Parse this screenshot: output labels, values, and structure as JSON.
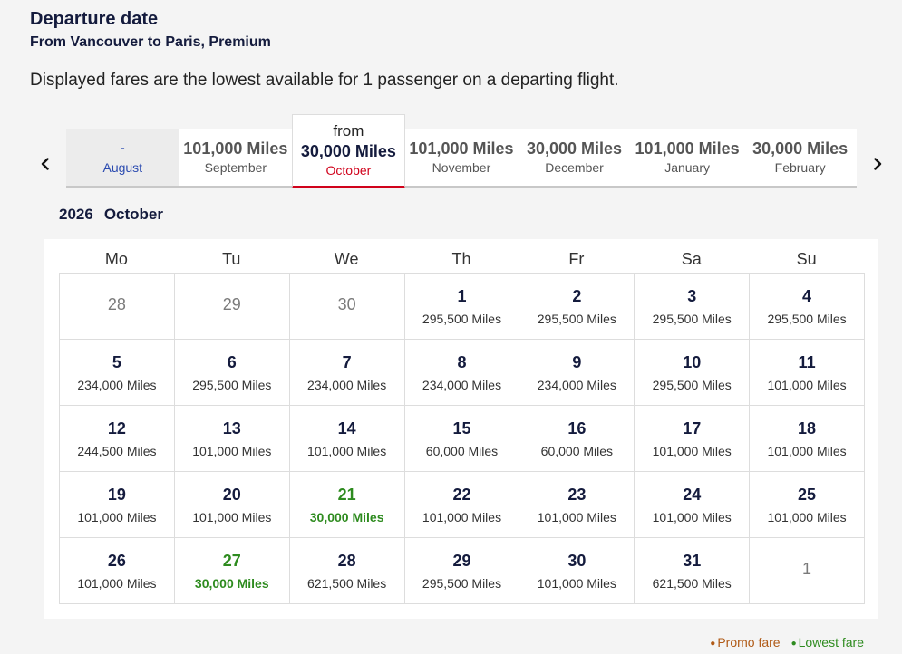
{
  "header": {
    "title": "Departure date",
    "subtitle": "From Vancouver to Paris, Premium",
    "note": "Displayed fares are the lowest available for 1 passenger on a departing flight."
  },
  "month_selector": {
    "prev_icon": "chevron-left-icon",
    "next_icon": "chevron-right-icon",
    "months": [
      {
        "price": "-",
        "name": "August",
        "state": "past"
      },
      {
        "price": "101,000 Miles",
        "name": "September"
      },
      {
        "from": "from",
        "price": "30,000 Miles",
        "name": "October",
        "state": "selected"
      },
      {
        "price": "101,000 Miles",
        "name": "November"
      },
      {
        "price": "30,000 Miles",
        "name": "December"
      },
      {
        "price": "101,000 Miles",
        "name": "January"
      },
      {
        "price": "30,000 Miles",
        "name": "February"
      }
    ]
  },
  "calendar": {
    "year": "2026",
    "month": "October",
    "weekdays": [
      "Mo",
      "Tu",
      "We",
      "Th",
      "Fr",
      "Sa",
      "Su"
    ],
    "cells": [
      {
        "day": "28",
        "out": true
      },
      {
        "day": "29",
        "out": true
      },
      {
        "day": "30",
        "out": true
      },
      {
        "day": "1",
        "miles": "295,500 Miles"
      },
      {
        "day": "2",
        "miles": "295,500 Miles"
      },
      {
        "day": "3",
        "miles": "295,500 Miles"
      },
      {
        "day": "4",
        "miles": "295,500 Miles"
      },
      {
        "day": "5",
        "miles": "234,000 Miles"
      },
      {
        "day": "6",
        "miles": "295,500 Miles"
      },
      {
        "day": "7",
        "miles": "234,000 Miles"
      },
      {
        "day": "8",
        "miles": "234,000 Miles"
      },
      {
        "day": "9",
        "miles": "234,000 Miles"
      },
      {
        "day": "10",
        "miles": "295,500 Miles"
      },
      {
        "day": "11",
        "miles": "101,000 Miles"
      },
      {
        "day": "12",
        "miles": "244,500 Miles"
      },
      {
        "day": "13",
        "miles": "101,000 Miles"
      },
      {
        "day": "14",
        "miles": "101,000 Miles"
      },
      {
        "day": "15",
        "miles": "60,000 Miles"
      },
      {
        "day": "16",
        "miles": "60,000 Miles"
      },
      {
        "day": "17",
        "miles": "101,000 Miles"
      },
      {
        "day": "18",
        "miles": "101,000 Miles"
      },
      {
        "day": "19",
        "miles": "101,000 Miles"
      },
      {
        "day": "20",
        "miles": "101,000 Miles"
      },
      {
        "day": "21",
        "miles": "30,000 Miles",
        "lowest": true
      },
      {
        "day": "22",
        "miles": "101,000 Miles"
      },
      {
        "day": "23",
        "miles": "101,000 Miles"
      },
      {
        "day": "24",
        "miles": "101,000 Miles"
      },
      {
        "day": "25",
        "miles": "101,000 Miles"
      },
      {
        "day": "26",
        "miles": "101,000 Miles"
      },
      {
        "day": "27",
        "miles": "30,000 Miles",
        "lowest": true
      },
      {
        "day": "28",
        "miles": "621,500 Miles"
      },
      {
        "day": "29",
        "miles": "295,500 Miles"
      },
      {
        "day": "30",
        "miles": "101,000 Miles"
      },
      {
        "day": "31",
        "miles": "621,500 Miles"
      },
      {
        "day": "1",
        "out": true
      }
    ]
  },
  "legend": {
    "promo": "Promo fare",
    "lowest": "Lowest fare",
    "promo_color": "#b05a16",
    "lowest_color": "#2e8b1f"
  }
}
